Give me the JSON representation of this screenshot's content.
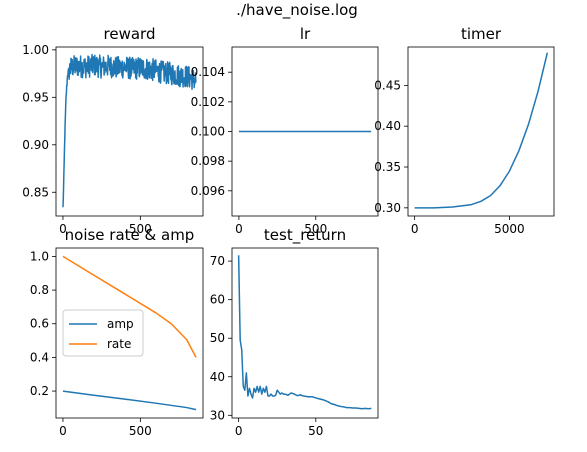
{
  "figure": {
    "suptitle": "./have_noise.log"
  },
  "colors": {
    "blue": "#1f77b4",
    "orange": "#ff7f0e",
    "axis": "#000000",
    "legend_border": "#cccccc"
  },
  "chart_data": [
    {
      "id": "reward",
      "type": "line",
      "title": "reward",
      "xlim": [
        -45,
        905
      ],
      "ylim": [
        0.825,
        1.003
      ],
      "xticks": [
        0,
        500
      ],
      "xtick_labels": [
        "0",
        "500"
      ],
      "yticks": [
        0.85,
        0.9,
        0.95,
        1.0
      ],
      "ytick_labels": [
        "0.85",
        "0.90",
        "0.95",
        "1.00"
      ],
      "series": [
        {
          "color": "#1f77b4",
          "noisy": true,
          "x": [
            0,
            5,
            12,
            20,
            30,
            45,
            60,
            100,
            150,
            200,
            250,
            300,
            350,
            400,
            450,
            500,
            550,
            600,
            650,
            700,
            750,
            800,
            860
          ],
          "y": [
            0.833,
            0.86,
            0.91,
            0.95,
            0.975,
            0.98,
            0.982,
            0.983,
            0.982,
            0.984,
            0.982,
            0.983,
            0.981,
            0.982,
            0.98,
            0.981,
            0.98,
            0.978,
            0.976,
            0.975,
            0.973,
            0.972,
            0.968
          ]
        }
      ]
    },
    {
      "id": "lr",
      "type": "line",
      "title": "lr",
      "xlim": [
        -45,
        905
      ],
      "ylim": [
        0.0943,
        0.1057
      ],
      "xticks": [
        0,
        500
      ],
      "xtick_labels": [
        "0",
        "500"
      ],
      "yticks": [
        0.096,
        0.098,
        0.1,
        0.102,
        0.104
      ],
      "ytick_labels": [
        "0.096",
        "0.098",
        "0.100",
        "0.102",
        "0.104"
      ],
      "series": [
        {
          "color": "#1f77b4",
          "x": [
            0,
            860
          ],
          "y": [
            0.1,
            0.1
          ]
        }
      ]
    },
    {
      "id": "timer",
      "type": "line",
      "title": "timer",
      "xlim": [
        -350,
        7350
      ],
      "ylim": [
        0.29,
        0.497
      ],
      "xticks": [
        0,
        5000
      ],
      "xtick_labels": [
        "0",
        "5000"
      ],
      "yticks": [
        0.3,
        0.35,
        0.4,
        0.45
      ],
      "ytick_labels": [
        "0.30",
        "0.35",
        "0.40",
        "0.45"
      ],
      "series": [
        {
          "color": "#1f77b4",
          "x": [
            0,
            1000,
            2000,
            3000,
            3500,
            4000,
            4500,
            5000,
            5500,
            6000,
            6500,
            7000
          ],
          "y": [
            0.3,
            0.3,
            0.301,
            0.304,
            0.308,
            0.315,
            0.327,
            0.345,
            0.37,
            0.402,
            0.442,
            0.49
          ]
        }
      ]
    },
    {
      "id": "noise",
      "type": "line",
      "title": "noise rate & amp",
      "xlim": [
        -45,
        905
      ],
      "ylim": [
        0.04,
        1.05
      ],
      "xticks": [
        0,
        500
      ],
      "xtick_labels": [
        "0",
        "500"
      ],
      "yticks": [
        0.2,
        0.4,
        0.6,
        0.8,
        1.0
      ],
      "ytick_labels": [
        "0.2",
        "0.4",
        "0.6",
        "0.8",
        "1.0"
      ],
      "legend": {
        "position": "center-left",
        "entries": [
          "amp",
          "rate"
        ]
      },
      "series": [
        {
          "name": "amp",
          "color": "#1f77b4",
          "x": [
            0,
            200,
            400,
            600,
            800,
            860
          ],
          "y": [
            0.2,
            0.175,
            0.152,
            0.128,
            0.102,
            0.09
          ]
        },
        {
          "name": "rate",
          "color": "#ff7f0e",
          "x": [
            0,
            200,
            400,
            600,
            700,
            800,
            860
          ],
          "y": [
            1.0,
            0.888,
            0.777,
            0.665,
            0.6,
            0.505,
            0.4
          ]
        }
      ]
    },
    {
      "id": "test_return",
      "type": "line",
      "title": "test_return",
      "xlim": [
        -4.3,
        90.3
      ],
      "ylim": [
        29.3,
        73.4
      ],
      "xticks": [
        0,
        50
      ],
      "xtick_labels": [
        "0",
        "50"
      ],
      "yticks": [
        30,
        40,
        50,
        60,
        70
      ],
      "ytick_labels": [
        "30",
        "40",
        "50",
        "60",
        "70"
      ],
      "series": [
        {
          "color": "#1f77b4",
          "x": [
            0,
            1,
            2,
            3,
            4,
            5,
            6,
            7,
            8,
            9,
            10,
            11,
            12,
            13,
            14,
            15,
            16,
            17,
            18,
            19,
            20,
            21,
            22,
            23,
            24,
            25,
            26,
            27,
            28,
            29,
            30,
            32,
            34,
            36,
            38,
            40,
            42,
            45,
            48,
            50,
            52,
            55,
            58,
            60,
            62,
            64,
            66,
            68,
            70,
            72,
            74,
            76,
            78,
            80,
            82,
            84,
            86
          ],
          "y": [
            71.5,
            49.5,
            47,
            37.5,
            36.5,
            41,
            35,
            37,
            35.5,
            34.5,
            37,
            36,
            37.5,
            36,
            37.5,
            35.5,
            37,
            36,
            37.5,
            35,
            35,
            35.5,
            35,
            35,
            35.2,
            36.5,
            36,
            35.5,
            35.8,
            35.5,
            35.5,
            35.2,
            35.8,
            35.5,
            35.1,
            35.3,
            35,
            34.8,
            34.8,
            34.5,
            34.3,
            34,
            33.5,
            33,
            32.8,
            32.5,
            32.3,
            32.2,
            32,
            32,
            31.9,
            31.9,
            31.8,
            31.7,
            31.8,
            31.7,
            31.8
          ]
        }
      ]
    }
  ]
}
